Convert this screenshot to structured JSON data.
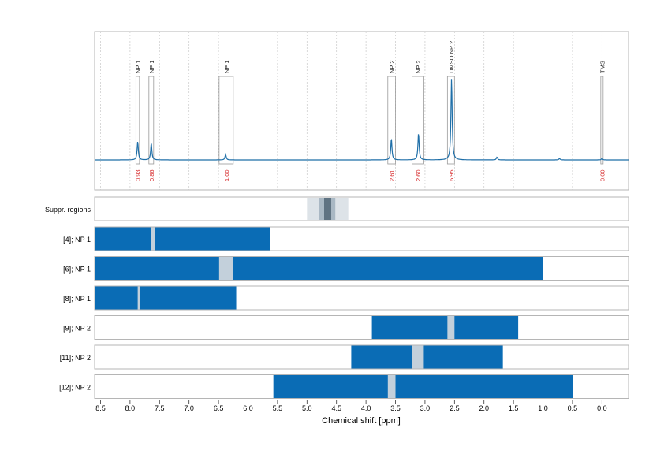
{
  "chart_data": {
    "type": "nmr-spectrum-with-region-bars",
    "xlabel": "Chemical shift [ppm]",
    "xlim": [
      8.6,
      -0.45
    ],
    "x_ticks": [
      8.5,
      8.0,
      7.5,
      7.0,
      6.5,
      6.0,
      5.5,
      5.0,
      4.5,
      4.0,
      3.5,
      3.0,
      2.5,
      2.0,
      1.5,
      1.0,
      0.5,
      0.0
    ],
    "x_tick_labels": [
      "8.5",
      "8.0",
      "7.5",
      "7.0",
      "6.5",
      "6.0",
      "5.5",
      "5.0",
      "4.5",
      "4.0",
      "3.5",
      "3.0",
      "2.5",
      "2.0",
      "1.5",
      "1.0",
      "0.5",
      "0.0"
    ],
    "grid": true,
    "colors": {
      "spectrum": "#1f6fa8",
      "bar": "#0a6cb5",
      "gap": "#c3d0db",
      "suppr_light": "#dde3e8",
      "suppr_mid": "#a9b8c4",
      "suppr_dark": "#5f7382",
      "integral_label": "#d62728",
      "box": "#9a9a9a"
    },
    "spectrum_peaks": [
      {
        "ppm": 7.87,
        "height": 0.13
      },
      {
        "ppm": 7.64,
        "height": 0.12
      },
      {
        "ppm": 6.38,
        "height": 0.04
      },
      {
        "ppm": 3.57,
        "height": 0.15
      },
      {
        "ppm": 3.11,
        "height": 0.19
      },
      {
        "ppm": 2.55,
        "height": 0.58
      },
      {
        "ppm": 1.78,
        "height": 0.02
      },
      {
        "ppm": 0.72,
        "height": 0.01
      },
      {
        "ppm": 0.0,
        "height": 0.01
      }
    ],
    "integration_regions": [
      {
        "label": "NP 1",
        "ppm_start": 7.9,
        "ppm_end": 7.84,
        "integral": "0.93"
      },
      {
        "label": "NP 1",
        "ppm_start": 7.68,
        "ppm_end": 7.6,
        "integral": "0.86"
      },
      {
        "label": "NP 1",
        "ppm_start": 6.49,
        "ppm_end": 6.25,
        "integral": "1.00"
      },
      {
        "label": "NP 2",
        "ppm_start": 3.63,
        "ppm_end": 3.5,
        "integral": "2.61"
      },
      {
        "label": "NP 2",
        "ppm_start": 3.22,
        "ppm_end": 3.02,
        "integral": "2.60"
      },
      {
        "label": "DMSO NP 2",
        "ppm_start": 2.62,
        "ppm_end": 2.5,
        "integral": "6.95"
      },
      {
        "label": "TMS",
        "ppm_start": 0.02,
        "ppm_end": -0.02,
        "integral": "0.00"
      }
    ],
    "suppressed_regions": {
      "label": "Suppr. regions",
      "bands": [
        {
          "ppm_start": 5.0,
          "ppm_end": 4.3,
          "shade": "light"
        },
        {
          "ppm_start": 4.79,
          "ppm_end": 4.52,
          "shade": "mid"
        },
        {
          "ppm_start": 4.71,
          "ppm_end": 4.59,
          "shade": "dark"
        }
      ]
    },
    "tracks": [
      {
        "label": "[4]; NP 1",
        "ppm_start": 8.6,
        "ppm_end": 5.63,
        "gaps": [
          [
            7.64,
            7.58
          ]
        ]
      },
      {
        "label": "[6]; NP 1",
        "ppm_start": 8.6,
        "ppm_end": 1.0,
        "gaps": [
          [
            6.49,
            6.25
          ]
        ]
      },
      {
        "label": "[8]; NP 1",
        "ppm_start": 8.6,
        "ppm_end": 6.2,
        "gaps": [
          [
            7.87,
            7.83
          ]
        ]
      },
      {
        "label": "[9]; NP 2",
        "ppm_start": 3.9,
        "ppm_end": 1.42,
        "gaps": [
          [
            2.62,
            2.5
          ]
        ]
      },
      {
        "label": "[11]; NP 2",
        "ppm_start": 4.25,
        "ppm_end": 1.68,
        "gaps": [
          [
            3.22,
            3.02
          ]
        ]
      },
      {
        "label": "[12]; NP 2",
        "ppm_start": 5.57,
        "ppm_end": 0.49,
        "gaps": [
          [
            3.63,
            3.5
          ]
        ]
      }
    ]
  }
}
